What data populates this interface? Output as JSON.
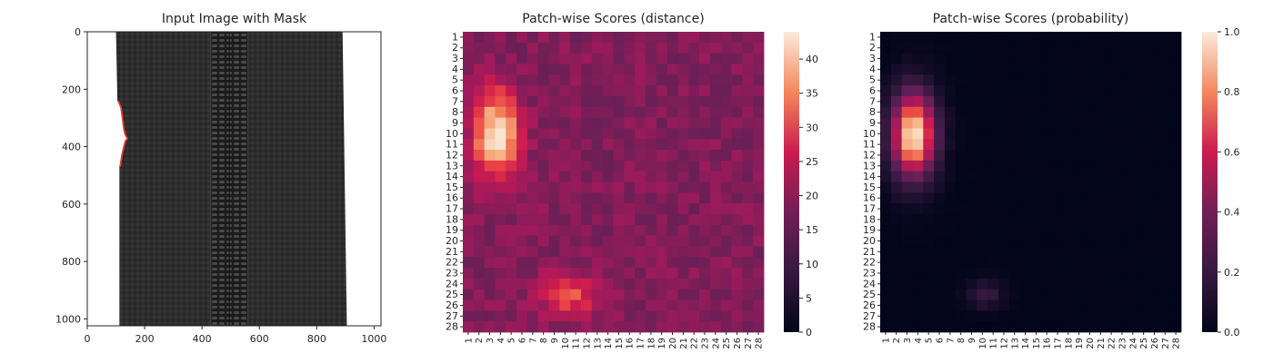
{
  "chart_data": [
    {
      "type": "image",
      "title": "Input Image with Mask",
      "xlim": [
        0,
        1024
      ],
      "ylim": [
        1024,
        0
      ],
      "x_ticks": [
        0,
        200,
        400,
        600,
        800,
        1000
      ],
      "y_ticks": [
        0,
        200,
        400,
        600,
        800,
        1000
      ],
      "x_tick_labels": [
        "0",
        "200",
        "400",
        "600",
        "800",
        "1000"
      ],
      "y_tick_labels": [
        "0",
        "200",
        "400",
        "600",
        "800",
        "1000"
      ],
      "content": "black zipper on white background with red mask outline",
      "zipper_left_edge": [
        [
          0,
          100
        ],
        [
          240,
          105
        ],
        [
          265,
          115
        ],
        [
          300,
          120
        ],
        [
          340,
          125
        ],
        [
          360,
          130
        ],
        [
          372,
          137
        ],
        [
          380,
          130
        ],
        [
          400,
          125
        ],
        [
          430,
          118
        ],
        [
          470,
          112
        ],
        [
          1024,
          112
        ]
      ],
      "zipper_right_edge": [
        [
          0,
          890
        ],
        [
          1024,
          905
        ]
      ],
      "zipper_teeth_x": [
        430,
        560
      ],
      "zipper_colors": {
        "fabric": "#2d2d2d",
        "teeth": "#1e1e1e",
        "mask": "#ff3b30",
        "background": "#ffffff"
      }
    },
    {
      "type": "heatmap",
      "title": "Patch-wise Scores (distance)",
      "x_tick_labels": [
        "1",
        "2",
        "3",
        "4",
        "5",
        "6",
        "7",
        "8",
        "9",
        "10",
        "11",
        "12",
        "13",
        "14",
        "15",
        "16",
        "17",
        "18",
        "19",
        "20",
        "21",
        "22",
        "23",
        "24",
        "25",
        "26",
        "27",
        "28"
      ],
      "y_tick_labels": [
        "1",
        "2",
        "3",
        "4",
        "5",
        "6",
        "7",
        "8",
        "9",
        "10",
        "11",
        "12",
        "13",
        "14",
        "15",
        "16",
        "17",
        "18",
        "19",
        "20",
        "21",
        "22",
        "23",
        "24",
        "25",
        "26",
        "27",
        "28"
      ],
      "colormap": "rocket",
      "colorbar": {
        "min": 0,
        "max": 44,
        "ticks": [
          0,
          5,
          10,
          15,
          20,
          25,
          30,
          35,
          40
        ],
        "tick_labels": [
          "0",
          "5",
          "10",
          "15",
          "20",
          "25",
          "30",
          "35",
          "40"
        ]
      },
      "hot_regions": [
        {
          "rows": [
            5,
            14
          ],
          "cols": [
            2,
            6
          ],
          "peak": 44,
          "peak_at": [
            11,
            3
          ]
        },
        {
          "rows": [
            23,
            27
          ],
          "cols": [
            7,
            13
          ],
          "peak": 31,
          "peak_at": [
            25,
            11
          ]
        }
      ],
      "background_value": 19
    },
    {
      "type": "heatmap",
      "title": "Patch-wise Scores (probability)",
      "x_tick_labels": [
        "1",
        "2",
        "3",
        "4",
        "5",
        "6",
        "7",
        "8",
        "9",
        "10",
        "11",
        "12",
        "13",
        "14",
        "15",
        "16",
        "17",
        "18",
        "19",
        "20",
        "21",
        "22",
        "23",
        "24",
        "25",
        "26",
        "27",
        "28"
      ],
      "y_tick_labels": [
        "1",
        "2",
        "3",
        "4",
        "5",
        "6",
        "7",
        "8",
        "9",
        "10",
        "11",
        "12",
        "13",
        "14",
        "15",
        "16",
        "17",
        "18",
        "19",
        "20",
        "21",
        "22",
        "23",
        "24",
        "25",
        "26",
        "27",
        "28"
      ],
      "colormap": "rocket",
      "colorbar": {
        "min": 0.0,
        "max": 1.0,
        "ticks": [
          0.0,
          0.2,
          0.4,
          0.6,
          0.8,
          1.0
        ],
        "tick_labels": [
          "0.0",
          "0.2",
          "0.4",
          "0.6",
          "0.8",
          "1.0"
        ]
      },
      "hot_regions": [
        {
          "rows": [
            5,
            14
          ],
          "cols": [
            2,
            6
          ],
          "peak": 1.0,
          "peak_at": [
            11,
            3
          ]
        },
        {
          "rows": [
            24,
            26
          ],
          "cols": [
            9,
            12
          ],
          "peak": 0.2,
          "peak_at": [
            25,
            10
          ]
        }
      ],
      "background_value": 0.0
    }
  ]
}
